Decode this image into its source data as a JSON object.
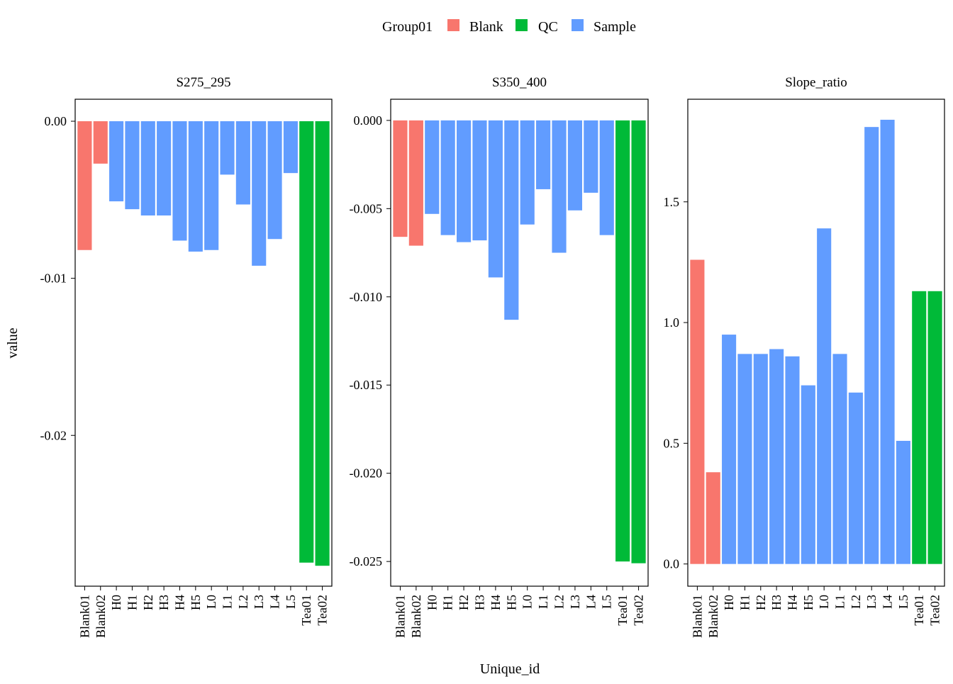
{
  "chart_data": {
    "type": "bar",
    "facet_wrap": true,
    "x_label": "Unique_id",
    "y_label": "value",
    "legend": {
      "title": "Group01",
      "position": "top",
      "entries": [
        {
          "name": "Blank",
          "color": "#F8766D"
        },
        {
          "name": "QC",
          "color": "#00BA38"
        },
        {
          "name": "Sample",
          "color": "#619CFF"
        }
      ]
    },
    "grid": false,
    "categories": [
      "Blank01",
      "Blank02",
      "H0",
      "H1",
      "H2",
      "H3",
      "H4",
      "H5",
      "L0",
      "L1",
      "L2",
      "L3",
      "L4",
      "L5",
      "Tea01",
      "Tea02"
    ],
    "groups": [
      "Blank",
      "Blank",
      "Sample",
      "Sample",
      "Sample",
      "Sample",
      "Sample",
      "Sample",
      "Sample",
      "Sample",
      "Sample",
      "Sample",
      "Sample",
      "Sample",
      "QC",
      "QC"
    ],
    "panels": [
      {
        "title": "S275_295",
        "yticks": [
          0.0,
          -0.01,
          -0.02
        ],
        "ytick_labels": [
          "0.00",
          "-0.01",
          "-0.02"
        ],
        "ylim": [
          -0.0296,
          0.0014
        ],
        "values": [
          -0.0082,
          -0.0027,
          -0.0051,
          -0.0056,
          -0.006,
          -0.006,
          -0.0076,
          -0.0083,
          -0.0082,
          -0.0034,
          -0.0053,
          -0.0092,
          -0.0075,
          -0.0033,
          -0.0281,
          -0.0283
        ]
      },
      {
        "title": "S350_400",
        "yticks": [
          0.0,
          -0.005,
          -0.01,
          -0.015,
          -0.02,
          -0.025
        ],
        "ytick_labels": [
          "0.000",
          "-0.005",
          "-0.010",
          "-0.015",
          "-0.020",
          "-0.025"
        ],
        "ylim": [
          -0.0264,
          0.0012
        ],
        "values": [
          -0.0066,
          -0.0071,
          -0.0053,
          -0.0065,
          -0.0069,
          -0.0068,
          -0.0089,
          -0.0113,
          -0.0059,
          -0.0039,
          -0.0075,
          -0.0051,
          -0.0041,
          -0.0065,
          -0.025,
          -0.0251
        ]
      },
      {
        "title": "Slope_ratio",
        "yticks": [
          0.0,
          0.5,
          1.0,
          1.5
        ],
        "ytick_labels": [
          "0.0",
          "0.5",
          "1.0",
          "1.5"
        ],
        "ylim": [
          -0.092,
          1.925
        ],
        "values": [
          1.26,
          0.38,
          0.95,
          0.87,
          0.87,
          0.89,
          0.86,
          0.74,
          1.39,
          0.87,
          0.71,
          1.81,
          1.84,
          0.51,
          1.13,
          1.13
        ]
      }
    ]
  }
}
